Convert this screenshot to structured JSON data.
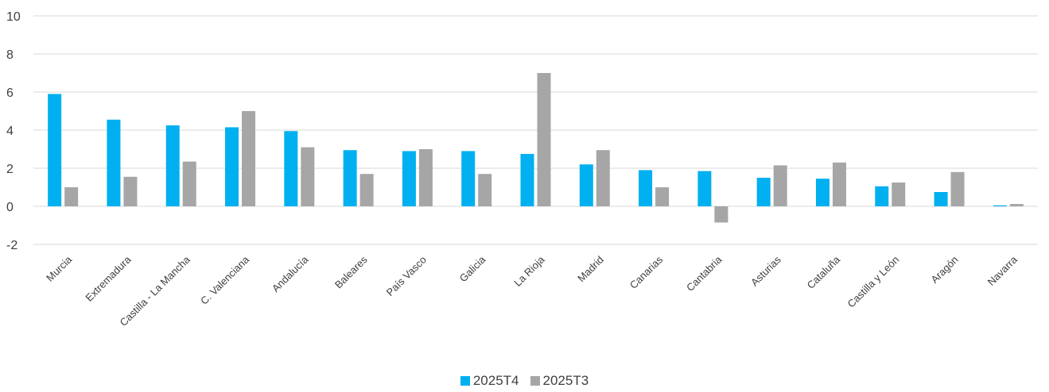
{
  "chart_data": {
    "type": "bar",
    "title": "",
    "xlabel": "",
    "ylabel": "",
    "ylim": [
      -2,
      10
    ],
    "yticks": [
      "-2",
      "0",
      "2",
      "4",
      "6",
      "8",
      "10"
    ],
    "grid": true,
    "legend_position": "bottom",
    "categories": [
      "Murcia",
      "Extremadura",
      "Castilla - La Mancha",
      "C. Valenciana",
      "Andalucía",
      "Baleares",
      "País Vasco",
      "Galicia",
      "La Rioja",
      "Madrid",
      "Canarias",
      "Cantabria",
      "Asturias",
      "Cataluña",
      "Castilla y León",
      "Aragón",
      "Navarra"
    ],
    "series": [
      {
        "name": "2025T4",
        "color": "#00B0F0",
        "values": [
          5.9,
          4.55,
          4.25,
          4.15,
          3.95,
          2.95,
          2.9,
          2.9,
          2.75,
          2.2,
          1.9,
          1.85,
          1.5,
          1.45,
          1.05,
          0.75,
          0.05
        ]
      },
      {
        "name": "2025T3",
        "color": "#A6A6A6",
        "values": [
          1.0,
          1.55,
          2.35,
          5.0,
          3.1,
          1.7,
          3.0,
          1.7,
          7.0,
          2.95,
          1.0,
          -0.85,
          2.15,
          2.3,
          1.25,
          1.8,
          0.12
        ]
      }
    ]
  }
}
